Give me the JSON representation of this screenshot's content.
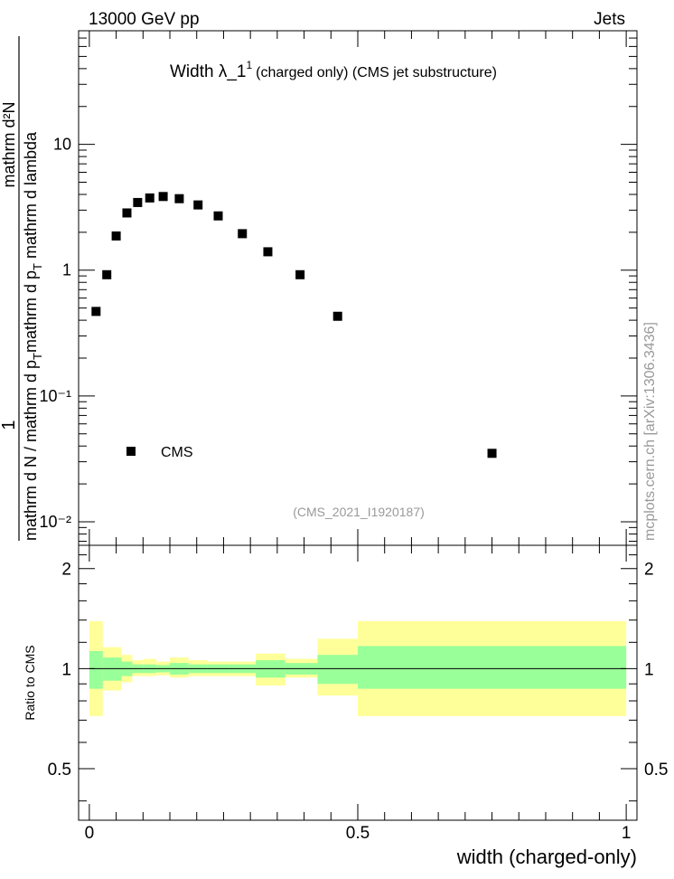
{
  "header": {
    "left": "13000 GeV pp",
    "right": "Jets"
  },
  "plot_title": {
    "main": "Width λ_1",
    "sup": "1",
    "sub": "(charged only) (CMS jet substructure)"
  },
  "watermark": "(CMS_2021_I1920187)",
  "side_label": "mcplots.cern.ch [arXiv:1306.3436]",
  "y_axis_label": {
    "numerator": "mathrm d²N",
    "denominator_1": "mathrm d p",
    "denominator_sub_1": "T",
    "denominator_2": " mathrm d lambda",
    "prefix_numerator": "1",
    "prefix_denominator_1": "mathrm d N / mathrm d p",
    "prefix_denominator_sub": "T"
  },
  "legend": {
    "label": "CMS",
    "position": "lower-left"
  },
  "colors": {
    "marker": "#000000",
    "band_inner": "#99ff99",
    "band_outer": "#ffff99"
  },
  "chart_data": [
    {
      "type": "scatter",
      "panel": "main",
      "xlim": [
        -0.02,
        1.02
      ],
      "ylim": [
        0.0065,
        80
      ],
      "y_scale": "log",
      "y_tick_labels": [
        "10⁻²",
        "10⁻¹",
        "1",
        "10"
      ],
      "series": [
        {
          "name": "CMS",
          "x": [
            0.0125,
            0.0325,
            0.05,
            0.07,
            0.09,
            0.1125,
            0.1375,
            0.1675,
            0.2025,
            0.24,
            0.285,
            0.3325,
            0.3925,
            0.4625,
            0.75
          ],
          "y": [
            0.47,
            0.92,
            1.87,
            2.85,
            3.45,
            3.75,
            3.85,
            3.7,
            3.3,
            2.7,
            1.95,
            1.4,
            0.92,
            0.43,
            0.035
          ]
        }
      ]
    },
    {
      "type": "area",
      "panel": "ratio",
      "ylabel": "Ratio to CMS",
      "xlabel": "width (charged-only)",
      "xlim": [
        -0.02,
        1.02
      ],
      "ylim": [
        0.35,
        2.35
      ],
      "x_tick_labels": [
        "0",
        "0.5",
        "1"
      ],
      "y_tick_labels": [
        "0.5",
        "1",
        "2"
      ],
      "bins": [
        {
          "lo": 0.0,
          "hi": 0.025,
          "inner": [
            0.87,
            1.13
          ],
          "outer": [
            0.72,
            1.39
          ]
        },
        {
          "lo": 0.025,
          "hi": 0.06,
          "inner": [
            0.92,
            1.08
          ],
          "outer": [
            0.86,
            1.16
          ]
        },
        {
          "lo": 0.06,
          "hi": 0.08,
          "inner": [
            0.95,
            1.05
          ],
          "outer": [
            0.91,
            1.1
          ]
        },
        {
          "lo": 0.08,
          "hi": 0.1,
          "inner": [
            0.97,
            1.03
          ],
          "outer": [
            0.95,
            1.06
          ]
        },
        {
          "lo": 0.1,
          "hi": 0.125,
          "inner": [
            0.97,
            1.03
          ],
          "outer": [
            0.95,
            1.07
          ]
        },
        {
          "lo": 0.125,
          "hi": 0.15,
          "inner": [
            0.975,
            1.025
          ],
          "outer": [
            0.955,
            1.05
          ]
        },
        {
          "lo": 0.15,
          "hi": 0.185,
          "inner": [
            0.96,
            1.04
          ],
          "outer": [
            0.94,
            1.08
          ]
        },
        {
          "lo": 0.185,
          "hi": 0.22,
          "inner": [
            0.97,
            1.03
          ],
          "outer": [
            0.95,
            1.06
          ]
        },
        {
          "lo": 0.22,
          "hi": 0.26,
          "inner": [
            0.97,
            1.03
          ],
          "outer": [
            0.95,
            1.05
          ]
        },
        {
          "lo": 0.26,
          "hi": 0.31,
          "inner": [
            0.97,
            1.03
          ],
          "outer": [
            0.95,
            1.05
          ]
        },
        {
          "lo": 0.31,
          "hi": 0.365,
          "inner": [
            0.94,
            1.06
          ],
          "outer": [
            0.89,
            1.11
          ]
        },
        {
          "lo": 0.365,
          "hi": 0.425,
          "inner": [
            0.96,
            1.04
          ],
          "outer": [
            0.94,
            1.07
          ]
        },
        {
          "lo": 0.425,
          "hi": 0.5,
          "inner": [
            0.9,
            1.1
          ],
          "outer": [
            0.83,
            1.23
          ]
        },
        {
          "lo": 0.5,
          "hi": 1.0,
          "inner": [
            0.87,
            1.17
          ],
          "outer": [
            0.72,
            1.39
          ]
        }
      ]
    }
  ]
}
